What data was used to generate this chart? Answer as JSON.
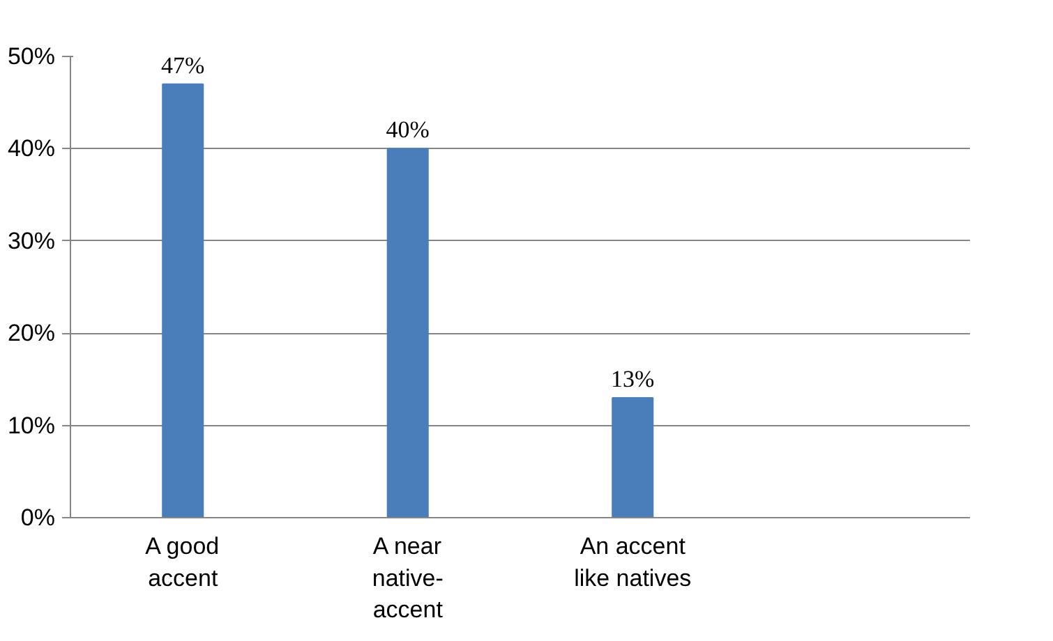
{
  "chart_data": {
    "type": "bar",
    "categories": [
      "A good accent",
      "A near native-accent",
      "An accent like natives",
      null
    ],
    "values": [
      47,
      40,
      13,
      null
    ],
    "color": "#4a7ebb",
    "ylim": [
      0,
      50
    ],
    "yticks": [
      {
        "value": 0,
        "label": "0%"
      },
      {
        "value": 10,
        "label": "10%"
      },
      {
        "value": 20,
        "label": "20%"
      },
      {
        "value": 30,
        "label": "30%"
      },
      {
        "value": 40,
        "label": "40%"
      },
      {
        "value": 50,
        "label": "50%"
      }
    ],
    "value_labels": [
      "47%",
      "40%",
      "13%",
      null
    ],
    "grid": "y"
  }
}
